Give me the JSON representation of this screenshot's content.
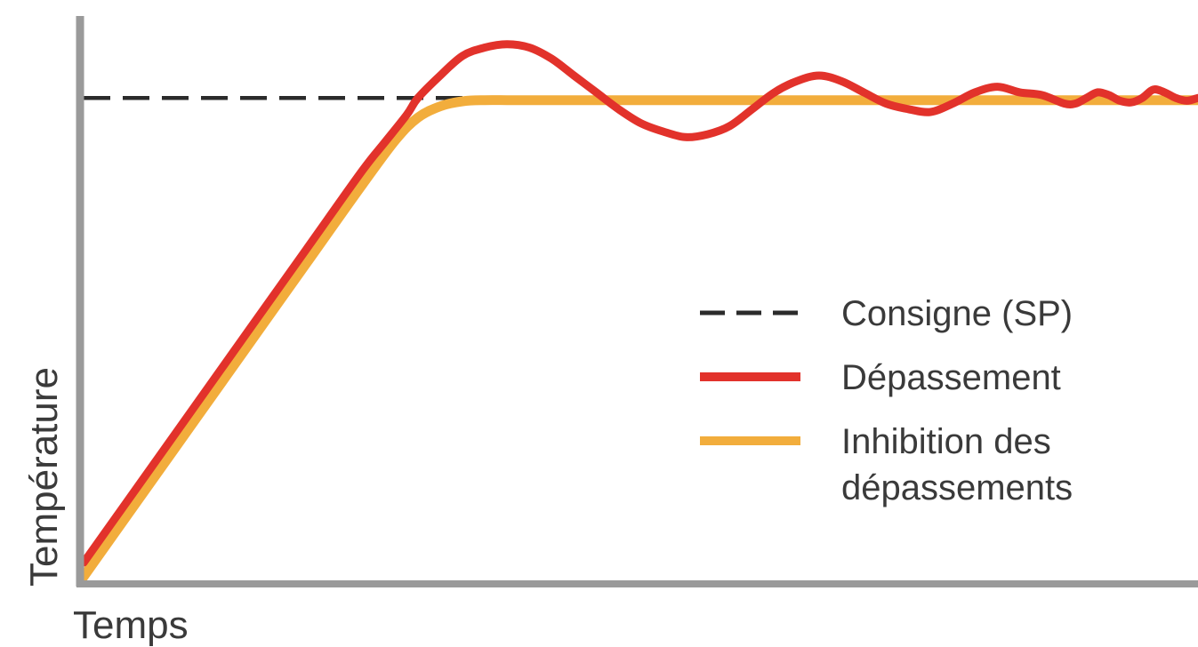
{
  "chart_data": {
    "type": "line",
    "title": "",
    "xlabel": "Temps",
    "ylabel": "Température",
    "xlim": [
      0,
      100
    ],
    "ylim": [
      0,
      100
    ],
    "grid": false,
    "legend_position": "right-middle",
    "colors": {
      "axis": "#9a9a9a",
      "setpoint": "#2b2b2b",
      "overshoot": "#e2322b",
      "inhibition": "#f2ad3c"
    },
    "setpoint": 86,
    "legend": [
      {
        "key": "setpoint",
        "lines": [
          "Consigne (SP)"
        ]
      },
      {
        "key": "overshoot",
        "lines": [
          "Dépassement"
        ]
      },
      {
        "key": "inhibition",
        "lines": [
          "Inhibition des",
          "dépassements"
        ]
      }
    ],
    "series": [
      {
        "key": "setpoint",
        "x": [
          0,
          100
        ],
        "y": [
          86,
          86
        ]
      },
      {
        "key": "overshoot",
        "x": [
          0,
          5,
          10,
          15,
          20,
          25,
          27,
          29,
          30,
          32,
          34,
          36,
          38,
          40,
          42,
          44,
          46,
          48,
          50,
          52,
          54,
          56,
          58,
          60,
          62,
          64,
          66,
          68,
          70,
          72,
          74,
          76,
          78,
          80,
          82,
          84,
          86,
          88,
          89,
          90,
          91,
          92,
          93,
          94,
          95,
          96,
          97,
          98,
          99,
          100
        ],
        "y": [
          3,
          17,
          31,
          45,
          59,
          73,
          78,
          83,
          86,
          90,
          93.5,
          95,
          95.6,
          95,
          93,
          90,
          87,
          84,
          81.5,
          80,
          79,
          79.5,
          81,
          84,
          87,
          89,
          90,
          89,
          87,
          85,
          84,
          83.5,
          85,
          87,
          88,
          87,
          86.5,
          85,
          85,
          86,
          87,
          86.5,
          85.5,
          85.2,
          86,
          87.5,
          87,
          86,
          85.5,
          86
        ]
      },
      {
        "key": "inhibition",
        "x": [
          0,
          5,
          10,
          15,
          20,
          25,
          28,
          30,
          32,
          34,
          36,
          38,
          40,
          50,
          60,
          70,
          80,
          90,
          100
        ],
        "y": [
          0.5,
          14.5,
          28.5,
          42.5,
          56.5,
          70.5,
          78.5,
          82.5,
          84.5,
          85.4,
          85.6,
          85.6,
          85.6,
          85.6,
          85.6,
          85.6,
          85.6,
          85.6,
          85.6
        ]
      }
    ]
  }
}
